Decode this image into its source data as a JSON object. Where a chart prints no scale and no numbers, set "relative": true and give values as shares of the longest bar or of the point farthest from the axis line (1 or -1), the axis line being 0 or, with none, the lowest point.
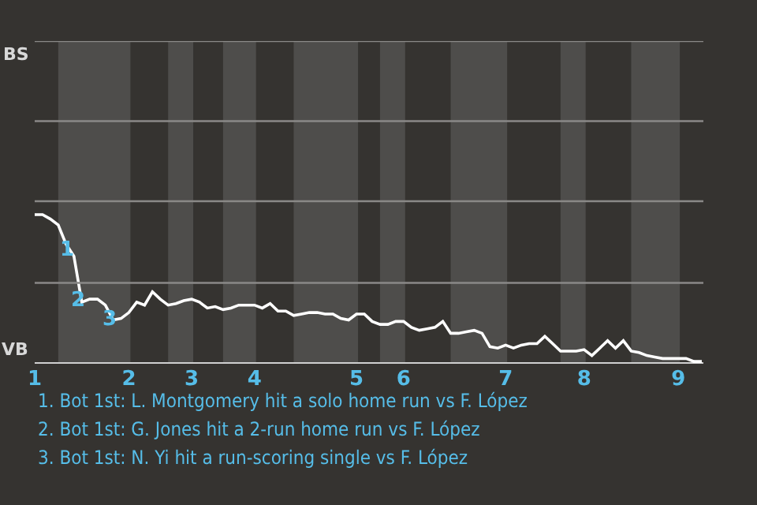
{
  "chart_data": {
    "type": "line",
    "categories": [
      "1",
      null,
      null,
      null,
      null,
      null,
      null,
      null,
      null,
      null,
      null,
      null,
      "2",
      null,
      null,
      null,
      null,
      null,
      null,
      null,
      "3",
      null,
      null,
      null,
      null,
      null,
      null,
      null,
      "4",
      null,
      null,
      null,
      null,
      null,
      null,
      null,
      null,
      null,
      null,
      null,
      null,
      "5",
      null,
      null,
      null,
      null,
      null,
      "6",
      null,
      null,
      null,
      null,
      null,
      null,
      null,
      null,
      null,
      null,
      null,
      null,
      "7",
      null,
      null,
      null,
      null,
      null,
      null,
      null,
      null,
      null,
      "8",
      null,
      null,
      null,
      null,
      null,
      null,
      null,
      null,
      null,
      null,
      null,
      "9",
      null,
      null,
      null
    ],
    "relative": true,
    "series": [
      {
        "color": "#ffffff",
        "values": [
          1,
          1,
          0.97,
          0.93,
          0.8,
          0.72,
          0.41,
          0.43,
          0.43,
          0.39,
          0.29,
          0.3,
          0.34,
          0.41,
          0.39,
          0.48,
          0.43,
          0.39,
          0.4,
          0.42,
          0.43,
          0.41,
          0.37,
          0.38,
          0.36,
          0.37,
          0.39,
          0.39,
          0.39,
          0.37,
          0.4,
          0.35,
          0.35,
          0.32,
          0.33,
          0.34,
          0.34,
          0.33,
          0.33,
          0.3,
          0.29,
          0.33,
          0.33,
          0.28,
          0.26,
          0.26,
          0.28,
          0.28,
          0.24,
          0.22,
          0.23,
          0.24,
          0.28,
          0.2,
          0.2,
          0.21,
          0.22,
          0.2,
          0.11,
          0.1,
          0.12,
          0.1,
          0.12,
          0.13,
          0.13,
          0.18,
          0.13,
          0.08,
          0.08,
          0.08,
          0.09,
          0.05,
          0.1,
          0.15,
          0.1,
          0.15,
          0.08,
          0.07,
          0.05,
          0.04,
          0.03,
          0.03,
          0.03,
          0.03,
          0.01,
          0.01
        ]
      }
    ],
    "marker": "none",
    "ref_lines": [
      {
        "axis": "y",
        "value": 0.54,
        "color": "#8a8987"
      },
      {
        "axis": "y",
        "value": 1.09,
        "color": "#8a8987"
      },
      {
        "axis": "y",
        "value": 1.63,
        "color": "#8a8987"
      },
      {
        "axis": "y",
        "value": 2.17,
        "color": "#8a8987"
      }
    ],
    "annotations": [
      "BS",
      "VB",
      {
        "text": "1",
        "y": 0.76
      },
      {
        "text": "2",
        "y": 0.42
      },
      {
        "text": "3",
        "y": 0.29
      },
      "1. Bot 1st: L. Montgomery hit a solo home run vs F. López",
      "2. Bot 1st: G. Jones hit a 2-run home run vs F. López",
      "3. Bot 1st: N. Yi hit a run-scoring single vs F. López"
    ]
  }
}
